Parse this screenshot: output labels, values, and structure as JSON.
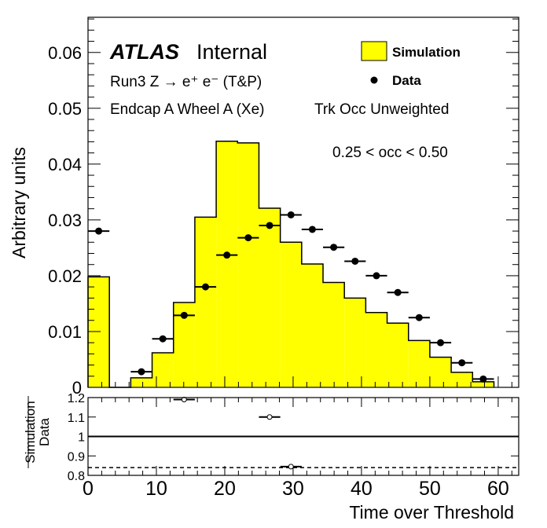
{
  "chart_data": [
    {
      "type": "bar",
      "title": "",
      "xlabel": "Time over Threshold",
      "ylabel": "Arbitrary units",
      "xlim": [
        0,
        63
      ],
      "ylim": [
        0,
        0.0663
      ],
      "yticks": [
        "0",
        "0.01",
        "0.02",
        "0.03",
        "0.04",
        "0.05",
        "0.06"
      ],
      "bin_edges": [
        0,
        3.125,
        6.25,
        9.375,
        12.5,
        15.625,
        18.75,
        21.875,
        25,
        28.125,
        31.25,
        34.375,
        37.5,
        40.625,
        43.75,
        46.875,
        50,
        53.125,
        56.25,
        59.375
      ],
      "series": [
        {
          "name": "Simulation",
          "style": "histogram",
          "color": "#ffff00",
          "values": [
            0.0198,
            0,
            0.0017,
            0.0062,
            0.0152,
            0.0305,
            0.0441,
            0.0438,
            0.0321,
            0.026,
            0.0221,
            0.0188,
            0.016,
            0.0134,
            0.0115,
            0.0084,
            0.0054,
            0.0027,
            0.001
          ]
        },
        {
          "name": "Data",
          "style": "markers",
          "color": "#000000",
          "values": [
            0.028,
            null,
            0.0028,
            0.0087,
            0.0129,
            0.018,
            0.0237,
            0.0268,
            0.029,
            0.0309,
            0.0283,
            0.0251,
            0.0226,
            0.02,
            0.017,
            0.0125,
            0.008,
            0.0044,
            0.0015
          ]
        }
      ],
      "legend": {
        "placement": "top-right",
        "entries": [
          "Simulation",
          "Data"
        ]
      },
      "annotations": {
        "atlas": "ATLAS",
        "internal": "Internal",
        "process": "Run3 Z → e⁺ e⁻ (T&P)",
        "region": "Endcap A Wheel A (Xe)",
        "weighting": "Trk Occ Unweighted",
        "occupancy": "0.25 < occ < 0.50"
      }
    },
    {
      "type": "scatter",
      "ylabel_num": "Simulation",
      "ylabel_den": "Data",
      "xlabel": "Time over Threshold",
      "xlim": [
        0,
        63
      ],
      "ylim": [
        0.8,
        1.2
      ],
      "xticks": [
        "0",
        "10",
        "20",
        "30",
        "40",
        "50",
        "60"
      ],
      "yticks": [
        "0.8",
        "0.9",
        "1",
        "1.1",
        "1.2"
      ],
      "reference_line": 1.0,
      "dashed_line": 0.84,
      "points": [
        {
          "x": 14.06,
          "xerr": 1.5625,
          "y": 1.19
        },
        {
          "x": 26.56,
          "xerr": 1.5625,
          "y": 1.1
        },
        {
          "x": 29.69,
          "xerr": 1.5625,
          "y": 0.845
        }
      ]
    }
  ]
}
